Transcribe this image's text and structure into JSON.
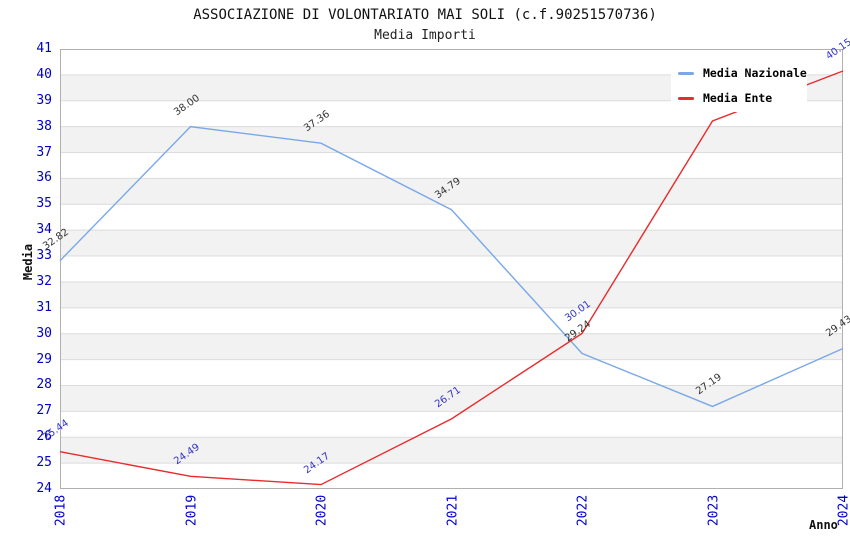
{
  "chart_data": {
    "type": "line",
    "title": "ASSOCIAZIONE DI VOLONTARIATO MAI SOLI (c.f.90251570736)",
    "subtitle": "Media Importi",
    "xlabel": "Anno",
    "ylabel": "Media",
    "ylim": [
      24,
      41
    ],
    "y_tick_step": 1,
    "categories": [
      "2018",
      "2019",
      "2020",
      "2021",
      "2022",
      "2023",
      "2024"
    ],
    "series": [
      {
        "name": "Media Nazionale",
        "color": "#7AA8E8",
        "label_color": "#333333",
        "values": [
          32.82,
          38.0,
          37.36,
          34.79,
          29.24,
          27.19,
          29.43
        ]
      },
      {
        "name": "Media Ente",
        "color": "#E92B2B",
        "label_color": "#3333CC",
        "values": [
          25.44,
          24.49,
          24.17,
          26.71,
          30.01,
          38.22,
          40.15
        ]
      }
    ],
    "legend_position": "top-right",
    "grid": "horizontal-bands-alternating",
    "colors": {
      "axis_text": "#0000CC",
      "band": "#F2F2F2",
      "gridline": "#DCDCDC",
      "frame": "#B0B0B0",
      "background": "#FFFFFF",
      "title_text": "#111111"
    }
  }
}
